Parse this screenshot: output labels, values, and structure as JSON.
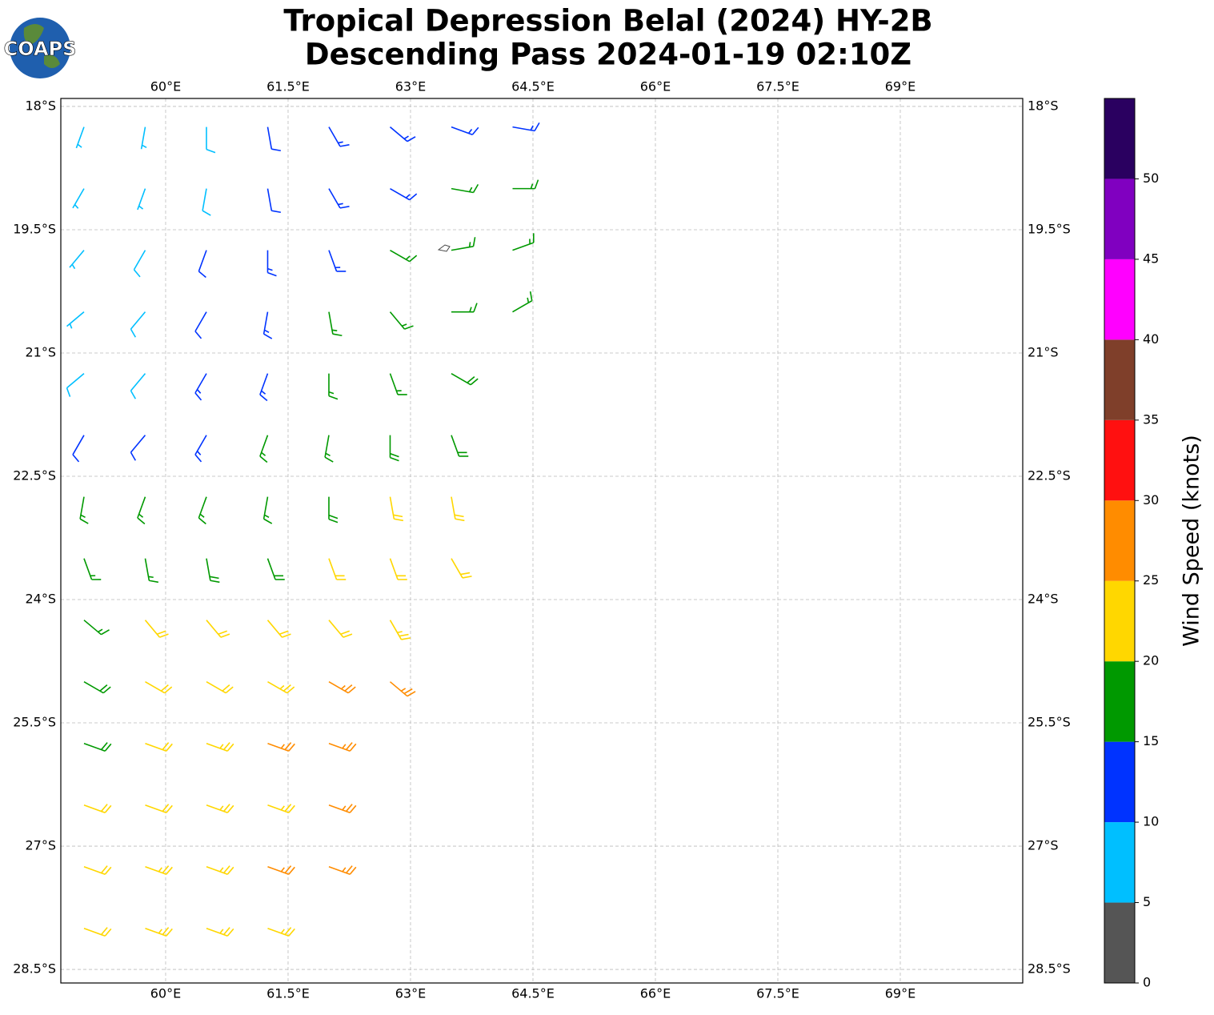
{
  "chart_data": {
    "type": "barb",
    "title": "Tropical Depression Belal (2024) HY-2B",
    "subtitle": "Descending Pass 2024-01-19 02:10Z",
    "logo_text": "COAPS",
    "xlim": [
      58.716,
      70.5
    ],
    "ylim": [
      -28.665,
      -17.903
    ],
    "xticks": [
      {
        "value": 60,
        "label": "60°E"
      },
      {
        "value": 61.5,
        "label": "61.5°E"
      },
      {
        "value": 63,
        "label": "63°E"
      },
      {
        "value": 64.5,
        "label": "64.5°E"
      },
      {
        "value": 66,
        "label": "66°E"
      },
      {
        "value": 67.5,
        "label": "67.5°E"
      },
      {
        "value": 69,
        "label": "69°E"
      }
    ],
    "yticks": [
      {
        "value": -18,
        "label": "18°S"
      },
      {
        "value": -19.5,
        "label": "19.5°S"
      },
      {
        "value": -21,
        "label": "21°S"
      },
      {
        "value": -22.5,
        "label": "22.5°S"
      },
      {
        "value": -24,
        "label": "24°S"
      },
      {
        "value": -25.5,
        "label": "25.5°S"
      },
      {
        "value": -27,
        "label": "27°S"
      },
      {
        "value": -28.5,
        "label": "28.5°S"
      }
    ],
    "grid": true,
    "colorbar": {
      "label": "Wind Speed (knots)",
      "lim": [
        0,
        55
      ],
      "bounds": [
        0,
        5,
        10,
        15,
        20,
        25,
        30,
        35,
        40,
        45,
        50,
        55
      ],
      "colors": [
        "#555555",
        "#00bfff",
        "#0033ff",
        "#009900",
        "#ffd700",
        "#ff8c00",
        "#ff1010",
        "#7f3f2a",
        "#ff00ff",
        "#8000c0",
        "#2a0060"
      ],
      "ticks": [
        0,
        5,
        10,
        15,
        20,
        25,
        30,
        35,
        40,
        45,
        50
      ]
    },
    "barbs": [
      [
        59.0,
        -18.25,
        7,
        200
      ],
      [
        59.75,
        -18.25,
        7,
        190
      ],
      [
        60.5,
        -18.25,
        8,
        180
      ],
      [
        61.25,
        -18.25,
        12,
        170
      ],
      [
        62.0,
        -18.25,
        13,
        150
      ],
      [
        62.75,
        -18.25,
        13,
        130
      ],
      [
        63.5,
        -18.25,
        13,
        110
      ],
      [
        64.25,
        -18.25,
        13,
        100
      ],
      [
        59.0,
        -19.0,
        7,
        210
      ],
      [
        59.75,
        -19.0,
        7,
        200
      ],
      [
        60.5,
        -19.0,
        8,
        190
      ],
      [
        61.25,
        -19.0,
        12,
        170
      ],
      [
        62.0,
        -19.0,
        13,
        150
      ],
      [
        62.75,
        -19.0,
        13,
        120
      ],
      [
        63.5,
        -19.0,
        16,
        100
      ],
      [
        64.25,
        -19.0,
        17,
        90
      ],
      [
        59.0,
        -19.75,
        7,
        220
      ],
      [
        59.75,
        -19.75,
        8,
        210
      ],
      [
        60.5,
        -19.75,
        11,
        200
      ],
      [
        61.25,
        -19.75,
        13,
        180
      ],
      [
        62.0,
        -19.75,
        14,
        160
      ],
      [
        62.75,
        -19.75,
        16,
        120
      ],
      [
        63.5,
        -19.75,
        17,
        80
      ],
      [
        64.25,
        -19.75,
        17,
        70
      ],
      [
        59.0,
        -20.5,
        7,
        230
      ],
      [
        59.75,
        -20.5,
        8,
        220
      ],
      [
        60.5,
        -20.5,
        12,
        210
      ],
      [
        61.25,
        -20.5,
        13,
        190
      ],
      [
        62.0,
        -20.5,
        15,
        170
      ],
      [
        62.75,
        -20.5,
        17,
        140
      ],
      [
        63.5,
        -20.5,
        17,
        90
      ],
      [
        64.25,
        -20.5,
        17,
        60
      ],
      [
        59.0,
        -21.25,
        8,
        230
      ],
      [
        59.75,
        -21.25,
        9,
        220
      ],
      [
        60.5,
        -21.25,
        13,
        210
      ],
      [
        61.25,
        -21.25,
        14,
        200
      ],
      [
        62.0,
        -21.25,
        17,
        180
      ],
      [
        62.75,
        -21.25,
        17,
        160
      ],
      [
        63.5,
        -21.25,
        18,
        120
      ],
      [
        59.0,
        -22.0,
        12,
        210
      ],
      [
        59.75,
        -22.0,
        11,
        220
      ],
      [
        60.5,
        -22.0,
        14,
        210
      ],
      [
        61.25,
        -22.0,
        16,
        200
      ],
      [
        62.0,
        -22.0,
        17,
        190
      ],
      [
        62.75,
        -22.0,
        18,
        180
      ],
      [
        63.5,
        -22.0,
        18,
        160
      ],
      [
        59.0,
        -22.75,
        16,
        190
      ],
      [
        59.75,
        -22.75,
        16,
        200
      ],
      [
        60.5,
        -22.75,
        17,
        200
      ],
      [
        61.25,
        -22.75,
        17,
        190
      ],
      [
        62.0,
        -22.75,
        18,
        180
      ],
      [
        62.75,
        -22.75,
        21,
        170
      ],
      [
        63.5,
        -22.75,
        20,
        170
      ],
      [
        59.0,
        -23.5,
        17,
        160
      ],
      [
        59.75,
        -23.5,
        17,
        170
      ],
      [
        60.5,
        -23.5,
        18,
        170
      ],
      [
        61.25,
        -23.5,
        18,
        160
      ],
      [
        62.0,
        -23.5,
        22,
        160
      ],
      [
        62.75,
        -23.5,
        22,
        160
      ],
      [
        63.5,
        -23.5,
        22,
        150
      ],
      [
        59.0,
        -24.25,
        17,
        130
      ],
      [
        59.75,
        -24.25,
        20,
        140
      ],
      [
        60.5,
        -24.25,
        21,
        140
      ],
      [
        61.25,
        -24.25,
        22,
        140
      ],
      [
        62.0,
        -24.25,
        22,
        140
      ],
      [
        62.75,
        -24.25,
        24,
        150
      ],
      [
        59.0,
        -25.0,
        18,
        120
      ],
      [
        59.75,
        -25.0,
        21,
        120
      ],
      [
        60.5,
        -25.0,
        22,
        120
      ],
      [
        61.25,
        -25.0,
        23,
        120
      ],
      [
        62.0,
        -25.0,
        26,
        120
      ],
      [
        62.75,
        -25.0,
        26,
        130
      ],
      [
        59.0,
        -25.75,
        19,
        110
      ],
      [
        59.75,
        -25.75,
        22,
        110
      ],
      [
        60.5,
        -25.75,
        23,
        110
      ],
      [
        61.25,
        -25.75,
        25,
        110
      ],
      [
        62.0,
        -25.75,
        27,
        110
      ],
      [
        59.0,
        -26.5,
        22,
        110
      ],
      [
        59.75,
        -26.5,
        22,
        110
      ],
      [
        60.5,
        -26.5,
        23,
        110
      ],
      [
        61.25,
        -26.5,
        24,
        110
      ],
      [
        62.0,
        -26.5,
        26,
        110
      ],
      [
        59.0,
        -27.25,
        22,
        110
      ],
      [
        59.75,
        -27.25,
        23,
        110
      ],
      [
        60.5,
        -27.25,
        23,
        110
      ],
      [
        61.25,
        -27.25,
        25,
        110
      ],
      [
        62.0,
        -27.25,
        27,
        110
      ],
      [
        59.0,
        -28.0,
        22,
        110
      ],
      [
        59.75,
        -28.0,
        23,
        110
      ],
      [
        60.5,
        -28.0,
        23,
        110
      ],
      [
        61.25,
        -28.0,
        24,
        110
      ]
    ]
  }
}
